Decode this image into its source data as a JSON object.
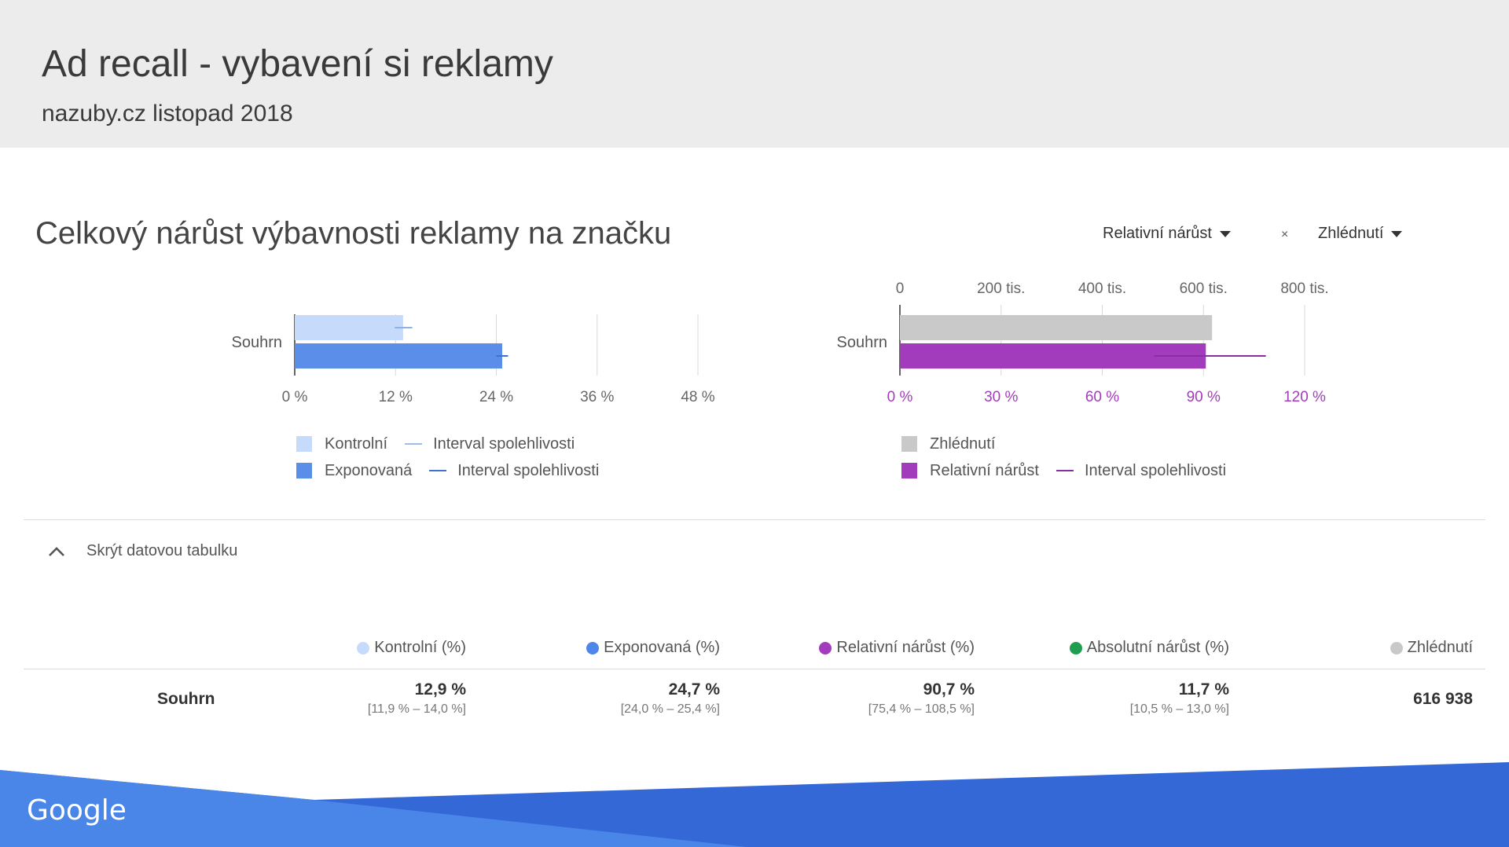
{
  "header": {
    "title": "Ad recall - vybavení si reklamy",
    "subtitle": "nazuby.cz listopad 2018"
  },
  "section": {
    "title": "Celkový nárůst výbavnosti reklamy na značku"
  },
  "controls": {
    "metric_select": "Relativní nárůst",
    "separator": "×",
    "dimension_select": "Zhlédnutí"
  },
  "charts": {
    "left": {
      "category": "Souhrn",
      "x_ticks": [
        "0 %",
        "12 %",
        "24 %",
        "36 %",
        "48 %"
      ],
      "legend": [
        {
          "label": "Kontrolní",
          "interval_label": "Interval spolehlivosti",
          "color": "#c6dafc"
        },
        {
          "label": "Exponovaná",
          "interval_label": "Interval spolehlivosti",
          "color": "#5b8ee8"
        }
      ]
    },
    "right": {
      "category": "Souhrn",
      "top_ticks": [
        "0",
        "200 tis.",
        "400 tis.",
        "600 tis.",
        "800 tis."
      ],
      "bottom_ticks": [
        "0 %",
        "30 %",
        "60 %",
        "90 %",
        "120 %"
      ],
      "legend": [
        {
          "label": "Zhlédnutí",
          "color": "#c9c9c9"
        },
        {
          "label": "Relativní nárůst",
          "interval_label": "Interval spolehlivosti",
          "color": "#a33cbc"
        }
      ]
    }
  },
  "chart_data": [
    {
      "type": "bar",
      "orientation": "horizontal",
      "categories": [
        "Souhrn"
      ],
      "series": [
        {
          "name": "Kontrolní",
          "values": [
            12.9
          ],
          "ci": [
            [
              11.9,
              14.0
            ]
          ],
          "color": "#c6dafc"
        },
        {
          "name": "Exponovaná",
          "values": [
            24.7
          ],
          "ci": [
            [
              24.0,
              25.4
            ]
          ],
          "color": "#5b8ee8"
        }
      ],
      "xlim": [
        0,
        48
      ],
      "grid": true
    },
    {
      "type": "bar",
      "orientation": "horizontal",
      "categories": [
        "Souhrn"
      ],
      "series": [
        {
          "name": "Zhlédnutí",
          "values": [
            616938
          ],
          "axis": "top",
          "color": "#c9c9c9"
        },
        {
          "name": "Relativní nárůst",
          "values": [
            90.7
          ],
          "ci": [
            [
              75.4,
              108.5
            ]
          ],
          "axis": "bottom",
          "color": "#a33cbc"
        }
      ],
      "xlim_top": [
        0,
        800000
      ],
      "xlim_bottom": [
        0,
        120
      ],
      "grid": true
    }
  ],
  "table": {
    "toggle_label": "Skrýt datovou tabulku",
    "columns": [
      {
        "label": "Kontrolní (%)",
        "color": "#c6dafc"
      },
      {
        "label": "Exponovaná (%)",
        "color": "#4f86ec"
      },
      {
        "label": "Relativní nárůst (%)",
        "color": "#a33cbc"
      },
      {
        "label": "Absolutní nárůst (%)",
        "color": "#1e9e4f"
      },
      {
        "label": "Zhlédnutí",
        "color": "#c9c9c9"
      }
    ],
    "rows": [
      {
        "label": "Souhrn",
        "cells": [
          {
            "value": "12,9 %",
            "ci": "[11,9 % – 14,0 %]"
          },
          {
            "value": "24,7 %",
            "ci": "[24,0 % – 25,4 %]"
          },
          {
            "value": "90,7 %",
            "ci": "[75,4 % – 108,5 %]"
          },
          {
            "value": "11,7 %",
            "ci": "[10,5 % – 13,0 %]"
          },
          {
            "value": "616 938",
            "ci": ""
          }
        ]
      }
    ]
  },
  "footer": {
    "logo": "Google"
  }
}
